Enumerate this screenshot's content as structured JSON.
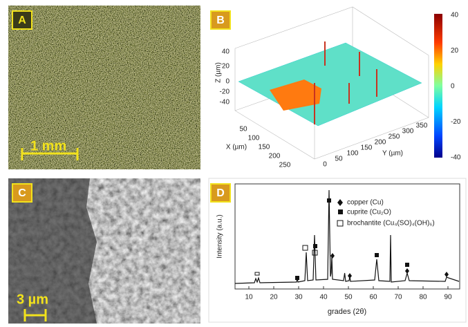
{
  "panels": {
    "a": {
      "label": "A",
      "scale_bar": "1 mm"
    },
    "b": {
      "label": "B",
      "z_axis": "Z (µm)",
      "x_axis": "X (µm)",
      "y_axis": "Y (µm)",
      "z_ticks": [
        "40",
        "20",
        "0",
        "-20",
        "-40"
      ],
      "x_ticks": [
        "50",
        "100",
        "150",
        "200",
        "250"
      ],
      "y_ticks": [
        "0",
        "50",
        "100",
        "150",
        "200",
        "250",
        "300",
        "350"
      ],
      "colorbar_ticks": [
        "40",
        "20",
        "0",
        "-20",
        "-40"
      ]
    },
    "c": {
      "label": "C",
      "scale_bar": "3 µm"
    },
    "d": {
      "label": "D",
      "x_axis": "grades (2θ)",
      "y_axis": "Intensity (a.u.)",
      "x_ticks": [
        "10",
        "20",
        "30",
        "40",
        "50",
        "60",
        "70",
        "80",
        "90"
      ],
      "legend": [
        "copper (Cu)",
        "cuprite (Cu₂O)",
        "brochantite (Cu₄(SO)₄(OH)₆)"
      ]
    }
  }
}
